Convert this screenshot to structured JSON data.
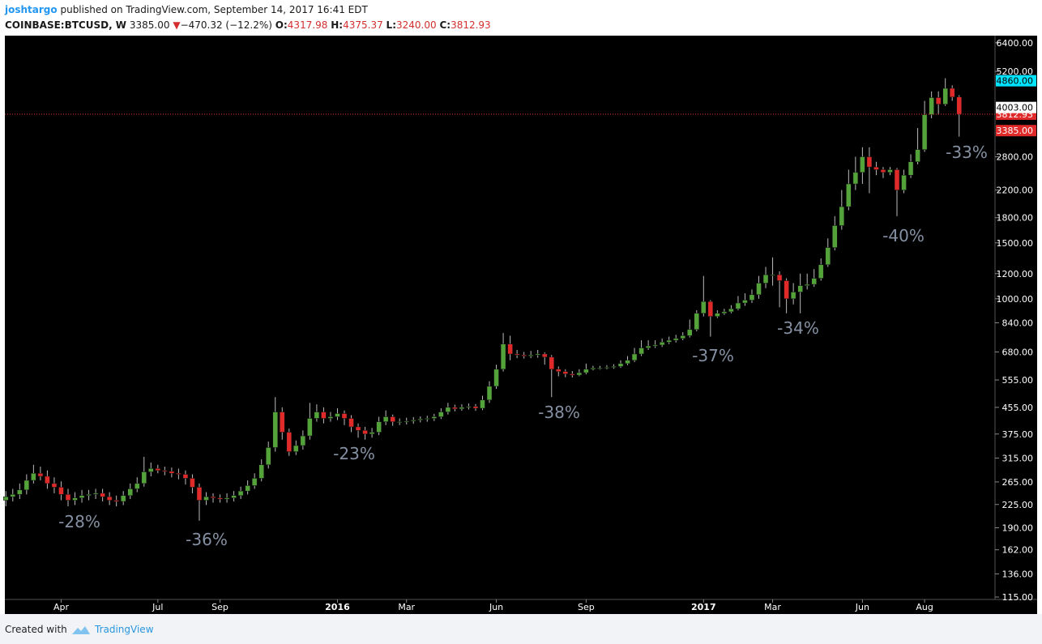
{
  "header": {
    "author": "joshtargo",
    "published": "published on TradingView.com, September 14, 2017 16:41 EDT",
    "symbol": "COINBASE:BTCUSD, W",
    "last": "3385.00",
    "arrow": "▼",
    "change": "−470.32 (−12.2%)",
    "ohlc": [
      {
        "label": "O:",
        "value": "4317.98"
      },
      {
        "label": "H:",
        "value": "4375.37"
      },
      {
        "label": "L:",
        "value": "3240.00"
      },
      {
        "label": "C:",
        "value": "3812.93"
      }
    ]
  },
  "footer": {
    "created": "Created with",
    "brand": "TradingView"
  },
  "chart_data": {
    "type": "candlestick",
    "log_scale": true,
    "grid": false,
    "up_color": "#53a33a",
    "down_color": "#e02a2a",
    "ylim": [
      113,
      6700
    ],
    "yticks": [
      {
        "value": 6400,
        "label": "6400.00"
      },
      {
        "value": 5200,
        "label": "5200.00"
      },
      {
        "value": 2800,
        "label": "2800.00"
      },
      {
        "value": 2200,
        "label": "2200.00"
      },
      {
        "value": 1800,
        "label": "1800.00"
      },
      {
        "value": 1500,
        "label": "1500.00"
      },
      {
        "value": 1200,
        "label": "1200.00"
      },
      {
        "value": 1000,
        "label": "1000.00"
      },
      {
        "value": 840,
        "label": "840.00"
      },
      {
        "value": 680,
        "label": "680.00"
      },
      {
        "value": 555,
        "label": "555.00"
      },
      {
        "value": 455,
        "label": "455.00"
      },
      {
        "value": 375,
        "label": "375.00"
      },
      {
        "value": 315,
        "label": "315.00"
      },
      {
        "value": 265,
        "label": "265.00"
      },
      {
        "value": 225,
        "label": "225.00"
      },
      {
        "value": 190,
        "label": "190.00"
      },
      {
        "value": 162,
        "label": "162.00"
      },
      {
        "value": 136,
        "label": "136.00"
      },
      {
        "value": 115,
        "label": "115.00"
      }
    ],
    "price_labels": [
      {
        "value": 4860,
        "label": "4860.00",
        "color": "#00e5ff",
        "text_color": "#000000"
      },
      {
        "value": 3812.93,
        "label": "3812.93",
        "color": "#e02a2a",
        "text_color": "#ffffff"
      },
      {
        "value": 4003,
        "label": "4003.00",
        "color": "#ffffff",
        "text_color": "#000000"
      },
      {
        "value": 3385,
        "label": "3385.00",
        "color": "#e02a2a",
        "text_color": "#ffffff"
      }
    ],
    "annotations": [
      "-28%",
      "-36%",
      "-23%",
      "-38%",
      "-37%",
      "-34%",
      "-40%",
      "-33%"
    ],
    "categories": [
      null,
      null,
      null,
      null,
      null,
      null,
      null,
      null,
      "Apr",
      null,
      null,
      null,
      null,
      null,
      null,
      null,
      null,
      null,
      null,
      null,
      null,
      null,
      "Jul",
      null,
      null,
      null,
      null,
      null,
      null,
      null,
      null,
      "Sep",
      null,
      null,
      null,
      null,
      null,
      null,
      null,
      null,
      null,
      null,
      null,
      null,
      null,
      null,
      null,
      null,
      "2016",
      null,
      null,
      null,
      null,
      null,
      null,
      null,
      null,
      null,
      "Mar",
      null,
      null,
      null,
      null,
      null,
      null,
      null,
      null,
      null,
      null,
      null,
      null,
      "Jun",
      null,
      null,
      null,
      null,
      null,
      null,
      null,
      null,
      null,
      null,
      null,
      null,
      "Sep",
      null,
      null,
      null,
      null,
      null,
      null,
      null,
      null,
      null,
      null,
      null,
      null,
      null,
      null,
      null,
      null,
      "2017",
      null,
      null,
      null,
      null,
      null,
      null,
      null,
      null,
      null,
      "Mar",
      null,
      null,
      null,
      null,
      null,
      null,
      null,
      null,
      null,
      null,
      null,
      null,
      "Jun",
      null,
      null,
      null,
      null,
      null,
      null,
      null,
      null,
      "Aug",
      null,
      null,
      null,
      null,
      null
    ],
    "open": [
      232,
      238,
      242,
      250,
      268,
      282,
      276,
      262,
      255,
      242,
      232,
      236,
      240,
      242,
      244,
      238,
      232,
      230,
      240,
      252,
      262,
      285,
      292,
      288,
      286,
      282,
      280,
      272,
      255,
      232,
      238,
      236,
      234,
      236,
      240,
      248,
      258,
      272,
      300,
      340,
      440,
      380,
      330,
      345,
      370,
      420,
      440,
      420,
      425,
      435,
      420,
      395,
      385,
      375,
      380,
      410,
      425,
      410,
      410,
      412,
      415,
      418,
      420,
      425,
      440,
      455,
      450,
      455,
      458,
      452,
      480,
      530,
      600,
      720,
      670,
      665,
      660,
      665,
      670,
      655,
      600,
      590,
      580,
      575,
      585,
      600,
      605,
      605,
      608,
      612,
      625,
      640,
      670,
      700,
      710,
      715,
      730,
      740,
      750,
      765,
      800,
      900,
      980,
      880,
      900,
      910,
      930,
      970,
      990,
      1030,
      1120,
      1190,
      1190,
      1140,
      1000,
      1050,
      1100,
      1110,
      1160,
      1280,
      1450,
      1700,
      1950,
      2300,
      2500,
      2800,
      2600,
      2550,
      2500,
      2550,
      2200,
      2450,
      2700,
      2950,
      3800,
      4300,
      4100,
      4600,
      4317.98
    ],
    "high": [
      248,
      252,
      262,
      280,
      300,
      296,
      288,
      274,
      266,
      252,
      246,
      250,
      250,
      252,
      252,
      246,
      240,
      248,
      262,
      274,
      318,
      305,
      300,
      296,
      294,
      292,
      288,
      280,
      262,
      246,
      244,
      242,
      244,
      248,
      256,
      268,
      282,
      312,
      355,
      490,
      455,
      390,
      358,
      385,
      470,
      465,
      455,
      440,
      452,
      445,
      430,
      405,
      395,
      392,
      425,
      445,
      432,
      420,
      422,
      424,
      426,
      428,
      434,
      452,
      470,
      464,
      465,
      468,
      466,
      495,
      550,
      620,
      780,
      765,
      690,
      680,
      685,
      690,
      678,
      665,
      612,
      600,
      592,
      600,
      625,
      615,
      615,
      618,
      622,
      640,
      660,
      700,
      740,
      740,
      740,
      750,
      760,
      770,
      785,
      860,
      920,
      1180,
      990,
      920,
      930,
      955,
      1020,
      1040,
      1070,
      1180,
      1260,
      1350,
      1220,
      1160,
      1120,
      1200,
      1200,
      1240,
      1340,
      1550,
      1820,
      2200,
      2550,
      2800,
      3000,
      3000,
      2700,
      2600,
      2600,
      2580,
      2550,
      2850,
      3450,
      4200,
      4500,
      4500,
      4950,
      4700,
      4375.37
    ],
    "low": [
      222,
      230,
      234,
      242,
      262,
      268,
      252,
      244,
      232,
      222,
      224,
      228,
      232,
      234,
      230,
      224,
      222,
      224,
      234,
      246,
      256,
      276,
      282,
      278,
      274,
      270,
      260,
      244,
      200,
      224,
      228,
      228,
      228,
      230,
      234,
      242,
      252,
      266,
      292,
      330,
      360,
      320,
      322,
      335,
      360,
      410,
      405,
      410,
      415,
      400,
      380,
      365,
      360,
      365,
      372,
      400,
      398,
      400,
      402,
      404,
      408,
      410,
      412,
      418,
      432,
      442,
      444,
      448,
      444,
      446,
      470,
      520,
      590,
      640,
      650,
      648,
      650,
      652,
      620,
      490,
      570,
      566,
      565,
      570,
      578,
      595,
      598,
      600,
      602,
      606,
      618,
      632,
      660,
      690,
      700,
      705,
      720,
      728,
      740,
      755,
      790,
      880,
      760,
      870,
      890,
      900,
      920,
      950,
      970,
      1000,
      1080,
      1100,
      940,
      900,
      960,
      900,
      1070,
      1090,
      1140,
      1260,
      1420,
      1650,
      1900,
      2200,
      2300,
      2150,
      2450,
      2400,
      2450,
      1820,
      2150,
      2400,
      2650,
      2900,
      3700,
      3800,
      4050,
      4200,
      3240
    ],
    "close": [
      238,
      242,
      250,
      268,
      282,
      276,
      262,
      255,
      242,
      232,
      236,
      240,
      242,
      244,
      238,
      232,
      230,
      240,
      252,
      262,
      285,
      292,
      288,
      286,
      282,
      280,
      272,
      255,
      232,
      238,
      236,
      234,
      236,
      240,
      248,
      258,
      272,
      300,
      340,
      440,
      380,
      330,
      345,
      370,
      420,
      440,
      420,
      425,
      435,
      420,
      395,
      385,
      375,
      380,
      410,
      425,
      410,
      410,
      412,
      415,
      418,
      420,
      425,
      440,
      455,
      450,
      455,
      458,
      452,
      480,
      530,
      600,
      720,
      670,
      665,
      660,
      665,
      670,
      655,
      600,
      590,
      580,
      575,
      585,
      600,
      605,
      605,
      608,
      612,
      625,
      640,
      670,
      700,
      710,
      715,
      730,
      740,
      750,
      765,
      800,
      900,
      980,
      880,
      900,
      910,
      930,
      970,
      990,
      1030,
      1120,
      1190,
      1190,
      1140,
      1000,
      1050,
      1100,
      1110,
      1160,
      1280,
      1450,
      1700,
      1950,
      2300,
      2500,
      2800,
      2600,
      2550,
      2500,
      2550,
      2200,
      2450,
      2700,
      2950,
      3800,
      4300,
      4100,
      4600,
      4318,
      3812.93
    ]
  }
}
